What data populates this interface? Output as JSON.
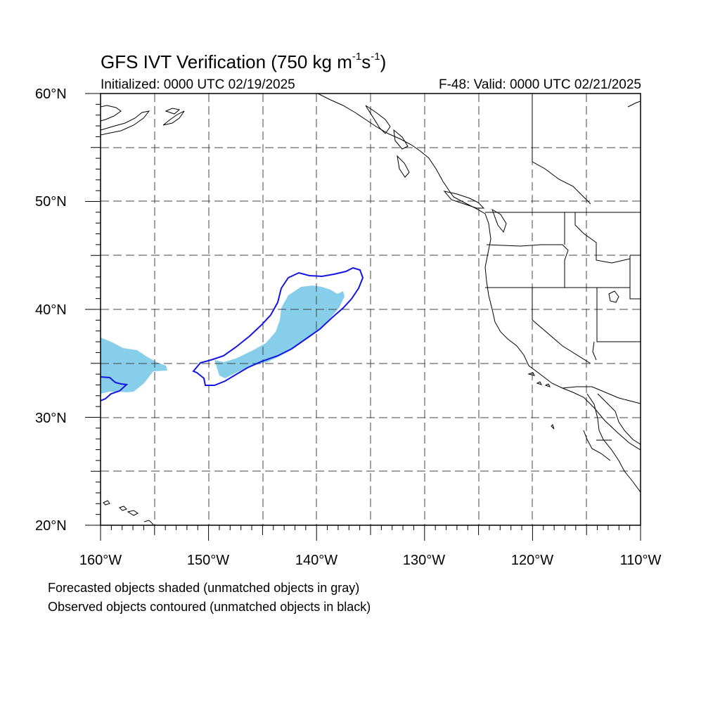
{
  "map": {
    "title": "GFS IVT Verification (750 kg m",
    "title_exp1": "-1",
    "title_mid": "s",
    "title_exp2": "-1",
    "title_end": ")",
    "initialized": "Initialized: 0000 UTC 02/19/2025",
    "valid": "F-48: Valid: 0000 UTC 02/21/2025",
    "lat_labels": [
      "60°N",
      "50°N",
      "40°N",
      "30°N",
      "20°N"
    ],
    "lon_labels": [
      "160°W",
      "150°W",
      "140°W",
      "130°W",
      "120°W",
      "110°W"
    ],
    "caption_forecast": "Forecasted objects shaded (unmatched objects in gray)",
    "caption_observed": "Observed objects contoured (unmatched objects in black)",
    "colors": {
      "forecast_fill": "#87ceeb",
      "observed_contour": "#1414e6",
      "grid": "#444444",
      "coastline": "#000000"
    },
    "extent": {
      "lon": [
        -160,
        -110
      ],
      "lat": [
        20,
        60
      ]
    }
  }
}
